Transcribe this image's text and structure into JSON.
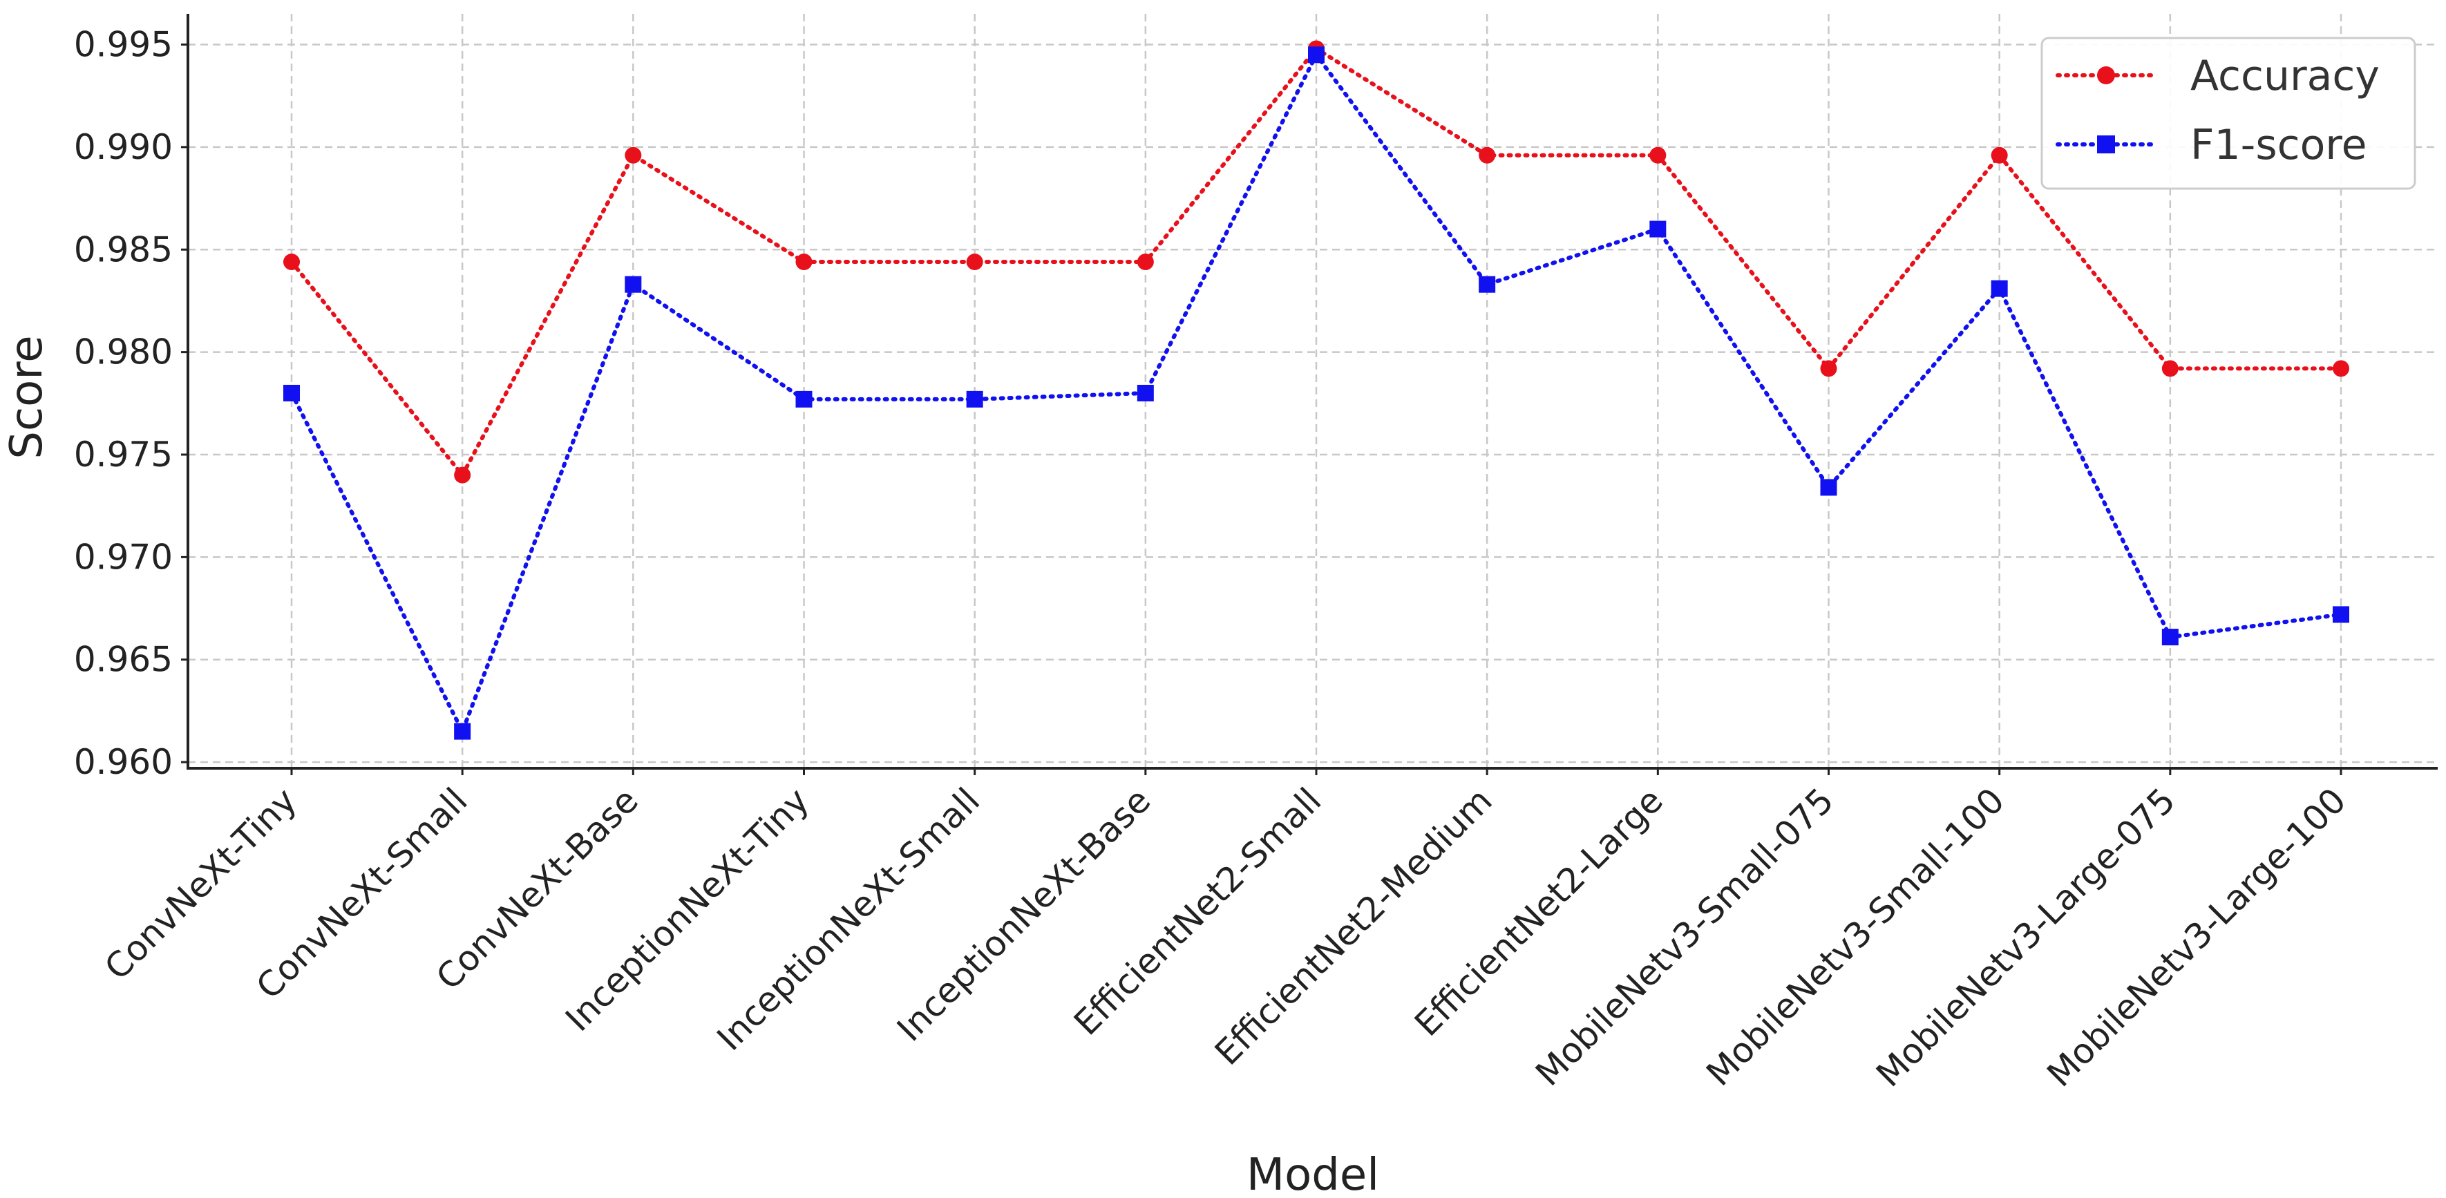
{
  "chart_data": {
    "type": "line",
    "title": "",
    "xlabel": "Model",
    "ylabel": "Score",
    "categories": [
      "ConvNeXt-Tiny",
      "ConvNeXt-Small",
      "ConvNeXt-Base",
      "InceptionNeXt-Tiny",
      "InceptionNeXt-Small",
      "InceptionNeXt-Base",
      "EfficientNet2-Small",
      "EfficientNet2-Medium",
      "EfficientNet2-Large",
      "MobileNetv3-Small-075",
      "MobileNetv3-Small-100",
      "MobileNetv3-Large-075",
      "MobileNetv3-Large-100"
    ],
    "series": [
      {
        "name": "Accuracy",
        "color": "#e8101a",
        "marker": "circle",
        "line_style": "dotted",
        "values": [
          0.9844,
          0.974,
          0.9896,
          0.9844,
          0.9844,
          0.9844,
          0.9948,
          0.9896,
          0.9896,
          0.9792,
          0.9896,
          0.9792,
          0.9792
        ]
      },
      {
        "name": "F1-score",
        "color": "#1010f0",
        "marker": "square",
        "line_style": "dotted",
        "values": [
          0.978,
          0.9615,
          0.9833,
          0.9777,
          0.9777,
          0.978,
          0.9945,
          0.9833,
          0.986,
          0.9734,
          0.9831,
          0.9661,
          0.9672
        ]
      }
    ],
    "ylim": [
      0.9597,
      0.9965
    ],
    "yticks": [
      "0.960",
      "0.965",
      "0.970",
      "0.975",
      "0.980",
      "0.985",
      "0.990",
      "0.995"
    ],
    "grid": true,
    "legend_position": "top-right"
  }
}
